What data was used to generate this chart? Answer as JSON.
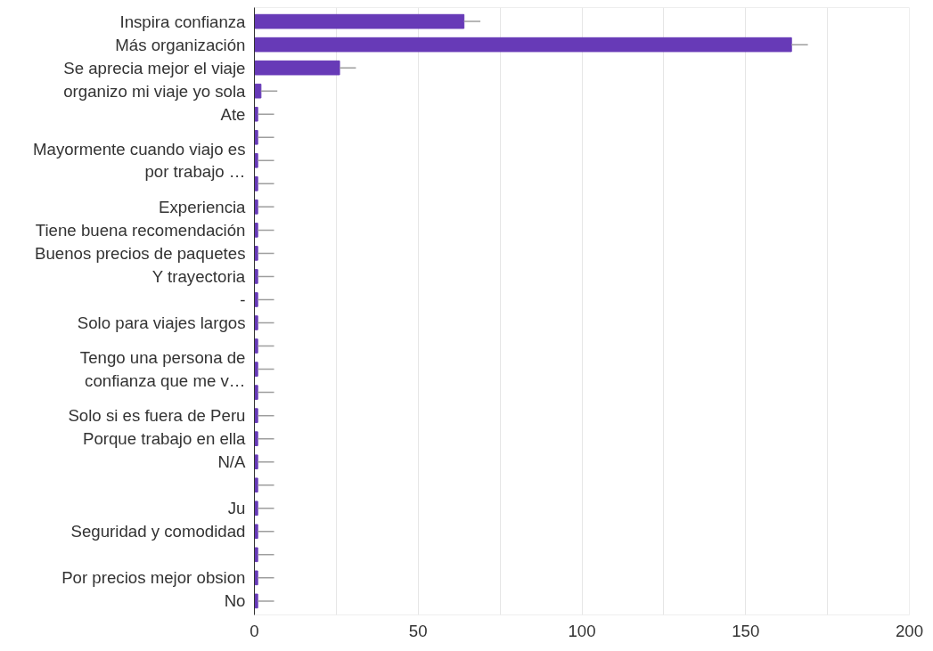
{
  "chart_data": {
    "type": "bar",
    "orientation": "horizontal",
    "categories": [
      "Inspira confianza",
      "Más organización",
      "Se aprecia mejor el viaje",
      "organizo mi viaje yo sola",
      "Ate",
      null,
      "Mayormente cuando viajo es por trabajo …",
      null,
      "Experiencia",
      "Tiene buena recomendación",
      "Buenos precios de paquetes",
      "Y trayectoria",
      "-",
      "Solo para viajes largos",
      null,
      "Tengo una persona de confianza que me v…",
      null,
      "Solo si es fuera de Peru",
      "Porque trabajo en ella",
      "N/A",
      null,
      "Ju",
      "Seguridad y comodidad",
      null,
      "Por precios mejor obsion",
      "No"
    ],
    "values": [
      64,
      164,
      26,
      2,
      1,
      1,
      1,
      1,
      1,
      1,
      1,
      1,
      1,
      1,
      1,
      1,
      1,
      1,
      1,
      1,
      1,
      1,
      1,
      1,
      1,
      1
    ],
    "errors": [
      [
        64,
        69
      ],
      [
        164,
        169
      ],
      [
        26,
        31
      ],
      [
        2,
        7
      ],
      [
        1,
        6
      ],
      [
        1,
        6
      ],
      [
        1,
        6
      ],
      [
        1,
        6
      ],
      [
        1,
        6
      ],
      [
        1,
        6
      ],
      [
        1,
        6
      ],
      [
        1,
        6
      ],
      [
        1,
        6
      ],
      [
        1,
        6
      ],
      [
        1,
        6
      ],
      [
        1,
        6
      ],
      [
        1,
        6
      ],
      [
        1,
        6
      ],
      [
        1,
        6
      ],
      [
        1,
        6
      ],
      [
        1,
        6
      ],
      [
        1,
        6
      ],
      [
        1,
        6
      ],
      [
        1,
        6
      ],
      [
        1,
        6
      ],
      [
        1,
        6
      ]
    ],
    "color": "#673ab7",
    "xlim": [
      0,
      200
    ],
    "xticks": [
      0,
      {
        "value": 25,
        "label": null
      },
      50,
      {
        "value": 75,
        "label": null
      },
      100,
      {
        "value": 125,
        "label": null
      },
      150,
      {
        "value": 175,
        "label": null
      },
      200
    ],
    "grid": "x"
  }
}
